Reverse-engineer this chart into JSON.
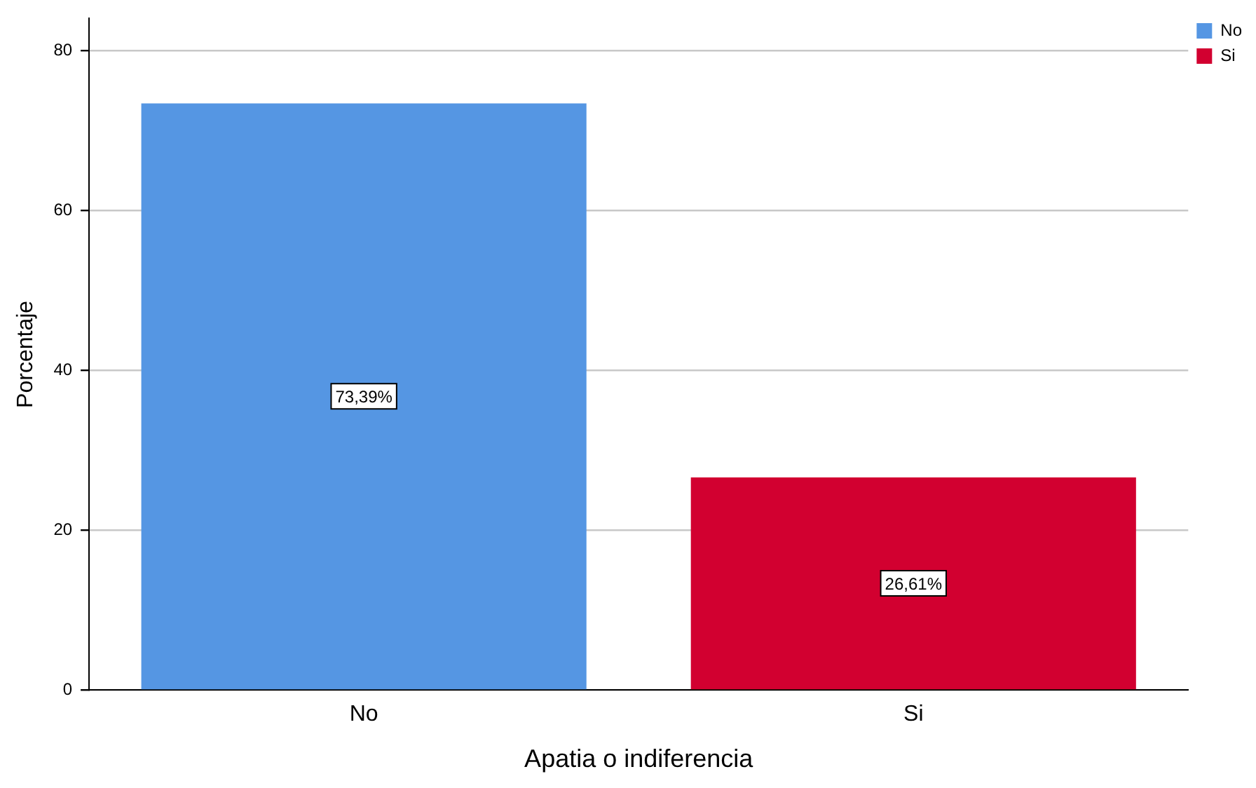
{
  "chart_data": {
    "type": "bar",
    "xlabel": "Apatia o indiferencia",
    "ylabel": "Porcentaje",
    "categories": [
      "No",
      "Si"
    ],
    "series": [
      {
        "name": "No",
        "color": "#5596e3",
        "values": [
          73.39,
          null
        ],
        "value_labels": [
          "73,39%",
          null
        ]
      },
      {
        "name": "Si",
        "color": "#d20030",
        "values": [
          null,
          26.61
        ],
        "value_labels": [
          null,
          "26,61%"
        ]
      }
    ],
    "ylim": [
      0,
      84
    ],
    "yticks": [
      0,
      20,
      40,
      60,
      80
    ],
    "grid": "y",
    "legend": "top right"
  }
}
